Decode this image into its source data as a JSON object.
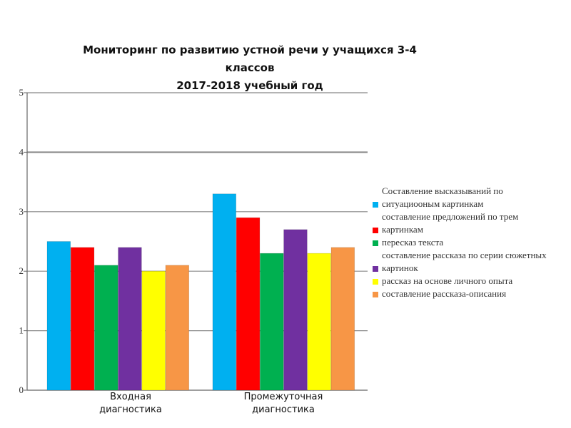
{
  "chart_data": {
    "type": "bar",
    "title": [
      "Мониторинг по развитию устной речи у учащихся 3-4",
      "классов",
      "2017-2018  учебный год"
    ],
    "categories": [
      "Входная диагностика",
      "Промежуточная диагностика"
    ],
    "category_lines": [
      [
        "Входная",
        "диагностика"
      ],
      [
        "Промежуточная",
        "диагностика"
      ]
    ],
    "ylim": [
      0,
      5
    ],
    "yticks": [
      "0",
      "1",
      "2",
      "3",
      "4",
      "5"
    ],
    "grid": true,
    "legend_position": "right",
    "series": [
      {
        "name": "Составление высказываний по ситуациооным картинкам",
        "color": "#00b0f0",
        "values": [
          2.5,
          3.3
        ]
      },
      {
        "name": "составление предложений по трем картинкам",
        "color": "#ff0000",
        "values": [
          2.4,
          2.9
        ]
      },
      {
        "name": "пересказ текста",
        "color": "#00b050",
        "values": [
          2.1,
          2.3
        ]
      },
      {
        "name": "составление рассказа по серии сюжетных картинок",
        "color": "#7030a0",
        "values": [
          2.4,
          2.7
        ]
      },
      {
        "name": "рассказ на основе личного опыта",
        "color": "#ffff00",
        "values": [
          2.0,
          2.3
        ]
      },
      {
        "name": "составление рассказа-описания",
        "color": "#f79646",
        "values": [
          2.1,
          2.4
        ]
      }
    ]
  }
}
